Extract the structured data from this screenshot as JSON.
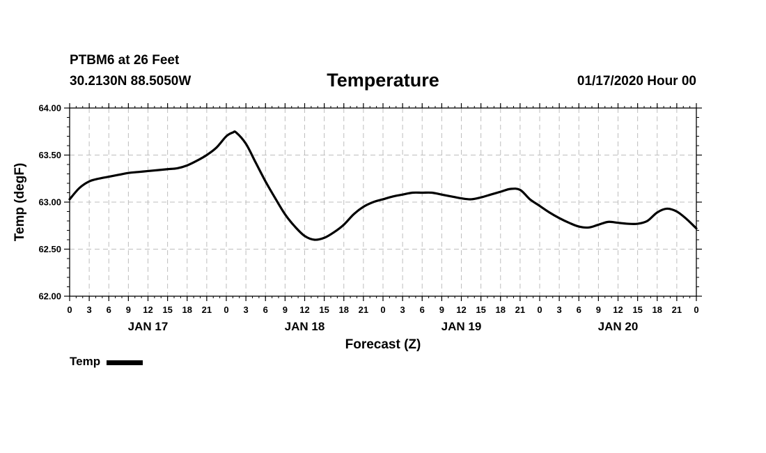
{
  "header": {
    "station": "PTBM6 at 26 Feet",
    "coords": "30.2130N 88.5050W",
    "title": "Temperature",
    "run_time": "01/17/2020 Hour 00"
  },
  "chart_data": {
    "type": "line",
    "title": "Temperature",
    "xlabel": "Forecast (Z)",
    "ylabel": "Temp (degF)",
    "ylim": [
      62.0,
      64.0
    ],
    "y_ticks": [
      "64.00",
      "63.50",
      "63.00",
      "62.50",
      "62.00"
    ],
    "x_range_hours": [
      0,
      96
    ],
    "x_tick_labels": [
      "0",
      "3",
      "6",
      "9",
      "12",
      "15",
      "18",
      "21",
      "0",
      "3",
      "6",
      "9",
      "12",
      "15",
      "18",
      "21",
      "0",
      "3",
      "6",
      "9",
      "12",
      "15",
      "18",
      "21",
      "0",
      "3",
      "6",
      "9",
      "12",
      "15",
      "18",
      "21",
      "0"
    ],
    "day_labels": [
      "JAN 17",
      "JAN 18",
      "JAN 19",
      "JAN 20"
    ],
    "grid": true,
    "legend": {
      "position": "bottom-left",
      "entries": [
        "Temp"
      ]
    },
    "series": [
      {
        "name": "Temp",
        "color": "#000000",
        "x": [
          0,
          1.5,
          3,
          4.5,
          6,
          7.5,
          9,
          10.5,
          12,
          13.5,
          15,
          16.5,
          18,
          19.5,
          21,
          22.5,
          24,
          25,
          25.5,
          27,
          28.5,
          30,
          31.5,
          33,
          34.5,
          36,
          37.5,
          39,
          40.5,
          42,
          43.5,
          45,
          46.5,
          48,
          49.5,
          51,
          52.5,
          54,
          55.5,
          57,
          58.5,
          60,
          61.5,
          63,
          64.5,
          66,
          67.5,
          69,
          70.5,
          72,
          73.5,
          75,
          76.5,
          78,
          79.5,
          81,
          82.5,
          84,
          85.5,
          87,
          88.5,
          90,
          91.5,
          93,
          94.5,
          96
        ],
        "values": [
          63.03,
          63.15,
          63.22,
          63.25,
          63.27,
          63.29,
          63.31,
          63.32,
          63.33,
          63.34,
          63.35,
          63.36,
          63.39,
          63.44,
          63.5,
          63.58,
          63.7,
          63.74,
          63.74,
          63.62,
          63.42,
          63.22,
          63.04,
          62.87,
          62.74,
          62.64,
          62.6,
          62.62,
          62.68,
          62.76,
          62.87,
          62.95,
          63.0,
          63.03,
          63.06,
          63.08,
          63.1,
          63.1,
          63.1,
          63.08,
          63.06,
          63.04,
          63.03,
          63.05,
          63.08,
          63.11,
          63.14,
          63.13,
          63.03,
          62.96,
          62.89,
          62.83,
          62.78,
          62.74,
          62.73,
          62.76,
          62.79,
          62.78,
          62.77,
          62.77,
          62.8,
          62.89,
          62.93,
          62.9,
          62.82,
          62.72
        ]
      }
    ]
  }
}
